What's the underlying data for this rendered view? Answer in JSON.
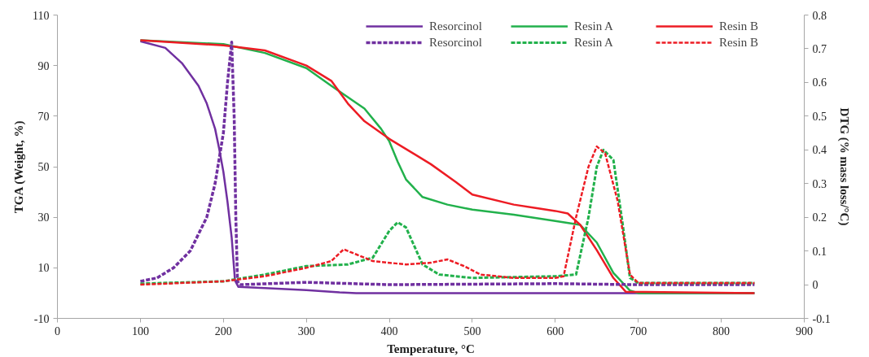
{
  "chart_data": {
    "type": "line",
    "xlabel": "Temperature, °C",
    "ylabel": "TGA (Weight, %)",
    "y2label": "DTG (% mass loss/°C)",
    "xlim": [
      0,
      900
    ],
    "xticks": [
      0,
      100,
      200,
      300,
      400,
      500,
      600,
      700,
      800,
      900
    ],
    "ylim": [
      -10,
      110
    ],
    "yticks": [
      -10,
      10,
      30,
      50,
      70,
      90,
      110
    ],
    "y2lim": [
      -0.1,
      0.8
    ],
    "y2ticks": [
      -0.1,
      0,
      0.1,
      0.2,
      0.3,
      0.4,
      0.5,
      0.6,
      0.7,
      0.8
    ],
    "grid": false,
    "legend": "top right",
    "marker": "none",
    "series": [
      {
        "name": "Resorcinol",
        "color": "#7030a0",
        "line_style": "solid",
        "x": [
          100,
          130,
          150,
          170,
          180,
          190,
          195,
          200,
          205,
          210,
          214,
          218,
          250,
          300,
          340,
          360,
          840
        ],
        "values": [
          99.6,
          97,
          91,
          82,
          75,
          65,
          57,
          48,
          36,
          22,
          5,
          2.5,
          2,
          1.2,
          0.3,
          0,
          0
        ]
      },
      {
        "name": "Resin A",
        "color": "#22b14c",
        "line_style": "solid",
        "x": [
          100,
          200,
          250,
          300,
          330,
          370,
          390,
          400,
          410,
          420,
          440,
          470,
          500,
          550,
          600,
          630,
          650,
          670,
          690,
          700,
          840
        ],
        "values": [
          100,
          98.5,
          95,
          89,
          82,
          73,
          65,
          60,
          52,
          45,
          38,
          35,
          33,
          31,
          28.5,
          27,
          20,
          8,
          1,
          0,
          0
        ]
      },
      {
        "name": "Resin B",
        "color": "#ed1c24",
        "line_style": "solid",
        "x": [
          100,
          200,
          250,
          300,
          330,
          350,
          370,
          400,
          450,
          480,
          500,
          550,
          600,
          615,
          630,
          650,
          670,
          685,
          840
        ],
        "values": [
          100,
          98,
          96,
          90,
          84,
          75,
          68,
          61,
          51,
          44,
          39,
          35,
          32.5,
          31.5,
          27,
          17,
          6,
          0.5,
          0
        ]
      },
      {
        "name": "Resorcinol",
        "color": "#7030a0",
        "line_style": "dashed",
        "axis": "y2",
        "x": [
          100,
          120,
          140,
          160,
          180,
          190,
          200,
          205,
          210,
          213,
          215,
          217,
          220,
          300,
          400,
          600,
          700,
          840
        ],
        "values": [
          0.01,
          0.02,
          0.05,
          0.1,
          0.2,
          0.3,
          0.45,
          0.6,
          0.72,
          0.5,
          0.2,
          0.01,
          0.0,
          0.007,
          0.0,
          0.003,
          0.0,
          0.0
        ]
      },
      {
        "name": "Resin A",
        "color": "#22b14c",
        "line_style": "dashed",
        "axis": "y2",
        "x": [
          100,
          200,
          250,
          300,
          350,
          380,
          400,
          410,
          420,
          440,
          460,
          500,
          600,
          625,
          640,
          650,
          658,
          670,
          680,
          690,
          700,
          840
        ],
        "values": [
          0.003,
          0.01,
          0.03,
          0.055,
          0.06,
          0.08,
          0.16,
          0.185,
          0.17,
          0.06,
          0.03,
          0.02,
          0.025,
          0.03,
          0.2,
          0.35,
          0.4,
          0.37,
          0.2,
          0.02,
          0.005,
          0.005
        ]
      },
      {
        "name": "Resin B",
        "color": "#ed1c24",
        "line_style": "dashed",
        "axis": "y2",
        "x": [
          100,
          200,
          250,
          300,
          330,
          345,
          360,
          380,
          420,
          450,
          470,
          490,
          510,
          550,
          600,
          610,
          625,
          640,
          650,
          660,
          675,
          690,
          700,
          840
        ],
        "values": [
          0,
          0.01,
          0.025,
          0.05,
          0.07,
          0.105,
          0.09,
          0.07,
          0.06,
          0.065,
          0.075,
          0.055,
          0.03,
          0.02,
          0.02,
          0.025,
          0.2,
          0.35,
          0.41,
          0.39,
          0.25,
          0.03,
          0.005,
          0.005
        ]
      }
    ]
  }
}
